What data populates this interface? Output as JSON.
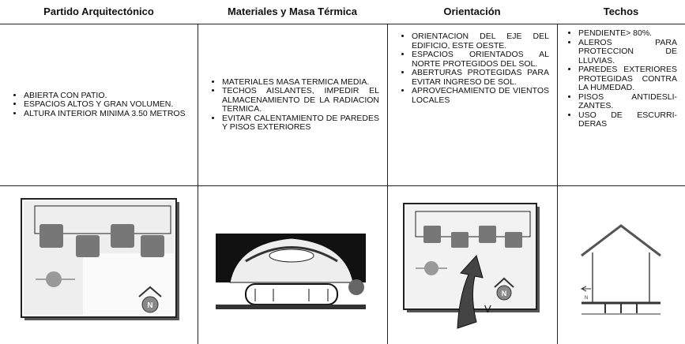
{
  "table": {
    "headers": [
      "Partido Arquitectónico",
      "Materiales y Masa Térmica",
      "Orientación",
      "Techos"
    ],
    "items": [
      [
        "ABIERTA CON PATIO.",
        "ESPACIOS ALTOS Y GRAN VOLUMEN.",
        "ALTURA INTERIOR MINIMA 3.50 METROS"
      ],
      [
        "MATERIALES MASA TERMICA MEDIA.",
        "TECHOS AISLANTES, IMPEDIR EL ALMACENAMIENTO DE LA RADIACION TERMICA.",
        "EVITAR CALENTAMIENTO DE PAREDES Y PISOS EXTERIORES"
      ],
      [
        "ORIENTACION DEL EJE DEL EDIFICIO, ESTE OESTE.",
        "ESPACIOS ORIENTADOS AL NORTE PROTEGIDOS DEL SOL.",
        "ABERTURAS PROTEGIDAS PARA EVITAR INGRESO DE SOL.",
        "APROVECHAMIENTO DE VIENTOS LOCALES"
      ],
      [
        "PENDIENTE> 80%.",
        "ALEROS PARA PROTECCION DE LLUVIAS.",
        "PAREDES EXTERIORES PROTEGIDAS CONTRA LA HUMEDAD.",
        "PISOS ANTIDESLI-ZANTES.",
        "USO DE ESCURRI-DERAS"
      ]
    ],
    "figures": {
      "patio_north": "N",
      "orientation_north": "N",
      "orientation_wind": "V",
      "roof_north": "N"
    }
  }
}
